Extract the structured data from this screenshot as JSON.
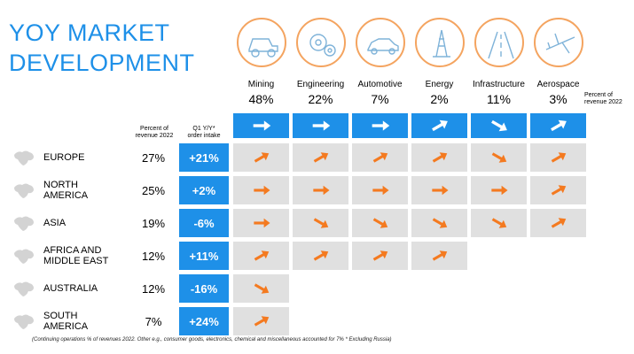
{
  "title": {
    "line1": "YOY MARKET",
    "line2": "DEVELOPMENT"
  },
  "header_labels": {
    "percent_revenue": [
      "Percent of",
      "revenue 2022"
    ],
    "q1_order_intake": [
      "Q1 Y/Y*",
      "order intake"
    ],
    "right_percent_revenue": [
      "Percent of",
      "revenue 2022"
    ]
  },
  "colors": {
    "accent": "#1E90E8",
    "arrow": "#F47A20",
    "cell_grey": "#E0E0E0",
    "row_grey": "#EBEBEB",
    "icon_ring": "#F4A460"
  },
  "footnote": "(Continuing operations % of revenues 2022. Other e.g., consumer goods, electronics, chemical and miscellaneous accounted for 7% * Excluding Russia)",
  "chart_data": {
    "type": "table",
    "industries": [
      {
        "name": "Mining",
        "share": "48%",
        "icon": "mining-truck-icon",
        "overall": "right"
      },
      {
        "name": "Engineering",
        "share": "22%",
        "icon": "gears-icon",
        "overall": "right"
      },
      {
        "name": "Automotive",
        "share": "7%",
        "icon": "car-icon",
        "overall": "right"
      },
      {
        "name": "Energy",
        "share": "2%",
        "icon": "oil-rig-icon",
        "overall": "up"
      },
      {
        "name": "Infrastructure",
        "share": "11%",
        "icon": "road-icon",
        "overall": "down"
      },
      {
        "name": "Aerospace",
        "share": "3%",
        "icon": "airplane-icon",
        "overall": "up"
      }
    ],
    "regions": [
      {
        "name": [
          "EUROPE"
        ],
        "revenue": "27%",
        "q1_yy": "+21%",
        "trends": [
          "up",
          "up",
          "up",
          "up",
          "down",
          "up"
        ]
      },
      {
        "name": [
          "NORTH",
          "AMERICA"
        ],
        "revenue": "25%",
        "q1_yy": "+2%",
        "trends": [
          "right",
          "right",
          "right",
          "right",
          "right",
          "up"
        ]
      },
      {
        "name": [
          "ASIA"
        ],
        "revenue": "19%",
        "q1_yy": "-6%",
        "trends": [
          "right",
          "down",
          "down",
          "down",
          "down",
          "up"
        ]
      },
      {
        "name": [
          "AFRICA AND",
          "MIDDLE EAST"
        ],
        "revenue": "12%",
        "q1_yy": "+11%",
        "trends": [
          "up",
          "up",
          "up",
          "up",
          null,
          null
        ]
      },
      {
        "name": [
          "AUSTRALIA"
        ],
        "revenue": "12%",
        "q1_yy": "-16%",
        "trends": [
          "down",
          null,
          null,
          null,
          null,
          null
        ]
      },
      {
        "name": [
          "SOUTH",
          "AMERICA"
        ],
        "revenue": "7%",
        "q1_yy": "+24%",
        "trends": [
          "up",
          null,
          null,
          null,
          null,
          null
        ]
      }
    ]
  }
}
